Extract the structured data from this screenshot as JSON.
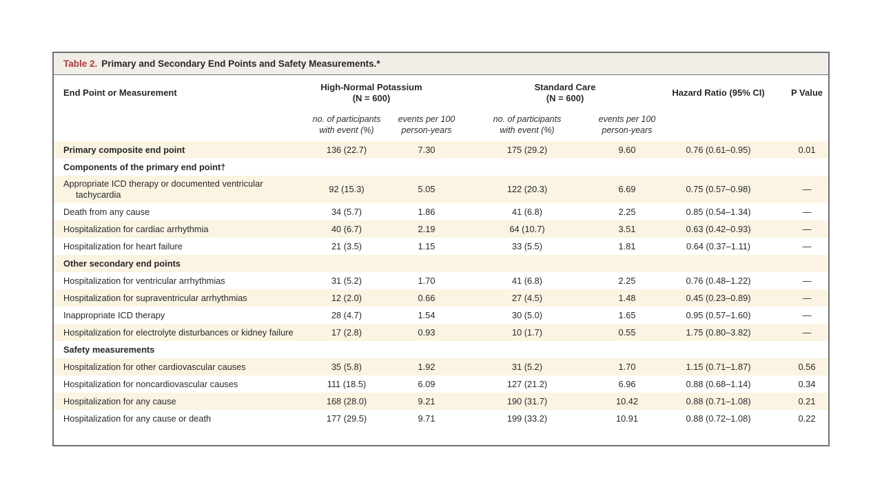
{
  "table": {
    "title_label": "Table 2.",
    "title_text": "Primary and Secondary End Points and Safety Measurements.*",
    "header": {
      "endpoint": "End Point or Measurement",
      "group_hnp": {
        "l1": "High-Normal Potassium",
        "l2": "(N = 600)"
      },
      "group_sc": {
        "l1": "Standard Care",
        "l2": "(N = 600)"
      },
      "sub_participants": {
        "l1": "no. of participants",
        "l2": "with event (%)"
      },
      "sub_events": {
        "l1": "events per 100",
        "l2": "person-years"
      },
      "hazard_ratio": "Hazard Ratio (95% CI)",
      "p_value": "P Value"
    },
    "colors": {
      "accent_red": "#b23733",
      "stripe_cream": "#fbf4e2",
      "title_bar_bg": "#f1eee7",
      "border_gray": "#6e6f72"
    },
    "rows": [
      {
        "kind": "data",
        "bold": true,
        "label": "Primary composite end point",
        "cells": [
          "136 (22.7)",
          "7.30",
          "175 (29.2)",
          "9.60",
          "0.76 (0.61–0.95)",
          "0.01"
        ]
      },
      {
        "kind": "section",
        "label": "Components of the primary end point†"
      },
      {
        "kind": "data",
        "bold": false,
        "label": "Appropriate ICD therapy or documented ventricular tachycardia",
        "cells": [
          "92 (15.3)",
          "5.05",
          "122 (20.3)",
          "6.69",
          "0.75 (0.57–0.98)",
          "—"
        ]
      },
      {
        "kind": "data",
        "bold": false,
        "label": "Death from any cause",
        "cells": [
          "34 (5.7)",
          "1.86",
          "41 (6.8)",
          "2.25",
          "0.85 (0.54–1.34)",
          "—"
        ]
      },
      {
        "kind": "data",
        "bold": false,
        "label": "Hospitalization for cardiac arrhythmia",
        "cells": [
          "40 (6.7)",
          "2.19",
          "64 (10.7)",
          "3.51",
          "0.63 (0.42–0.93)",
          "—"
        ]
      },
      {
        "kind": "data",
        "bold": false,
        "label": "Hospitalization for heart failure",
        "cells": [
          "21 (3.5)",
          "1.15",
          "33 (5.5)",
          "1.81",
          "0.64 (0.37–1.11)",
          "—"
        ]
      },
      {
        "kind": "section",
        "label": "Other secondary end points"
      },
      {
        "kind": "data",
        "bold": false,
        "label": "Hospitalization for ventricular arrhythmias",
        "cells": [
          "31 (5.2)",
          "1.70",
          "41 (6.8)",
          "2.25",
          "0.76 (0.48–1.22)",
          "—"
        ]
      },
      {
        "kind": "data",
        "bold": false,
        "label": "Hospitalization for supraventricular arrhythmias",
        "cells": [
          "12 (2.0)",
          "0.66",
          "27 (4.5)",
          "1.48",
          "0.45 (0.23–0.89)",
          "—"
        ]
      },
      {
        "kind": "data",
        "bold": false,
        "label": "Inappropriate ICD therapy",
        "cells": [
          "28 (4.7)",
          "1.54",
          "30 (5.0)",
          "1.65",
          "0.95 (0.57–1.60)",
          "—"
        ]
      },
      {
        "kind": "data",
        "bold": false,
        "label": "Hospitalization for electrolyte disturbances or kidney failure",
        "cells": [
          "17 (2.8)",
          "0.93",
          "10 (1.7)",
          "0.55",
          "1.75 (0.80–3.82)",
          "—"
        ]
      },
      {
        "kind": "section",
        "label": "Safety measurements"
      },
      {
        "kind": "data",
        "bold": false,
        "label": "Hospitalization for other cardiovascular causes",
        "cells": [
          "35 (5.8)",
          "1.92",
          "31 (5.2)",
          "1.70",
          "1.15 (0.71–1.87)",
          "0.56"
        ]
      },
      {
        "kind": "data",
        "bold": false,
        "label": "Hospitalization for noncardiovascular causes",
        "cells": [
          "111 (18.5)",
          "6.09",
          "127 (21.2)",
          "6.96",
          "0.88 (0.68–1.14)",
          "0.34"
        ]
      },
      {
        "kind": "data",
        "bold": false,
        "label": "Hospitalization for any cause",
        "cells": [
          "168 (28.0)",
          "9.21",
          "190 (31.7)",
          "10.42",
          "0.88 (0.71–1.08)",
          "0.21"
        ]
      },
      {
        "kind": "data",
        "bold": false,
        "label": "Hospitalization for any cause or death",
        "cells": [
          "177 (29.5)",
          "9.71",
          "199 (33.2)",
          "10.91",
          "0.88 (0.72–1.08)",
          "0.22"
        ]
      }
    ]
  }
}
